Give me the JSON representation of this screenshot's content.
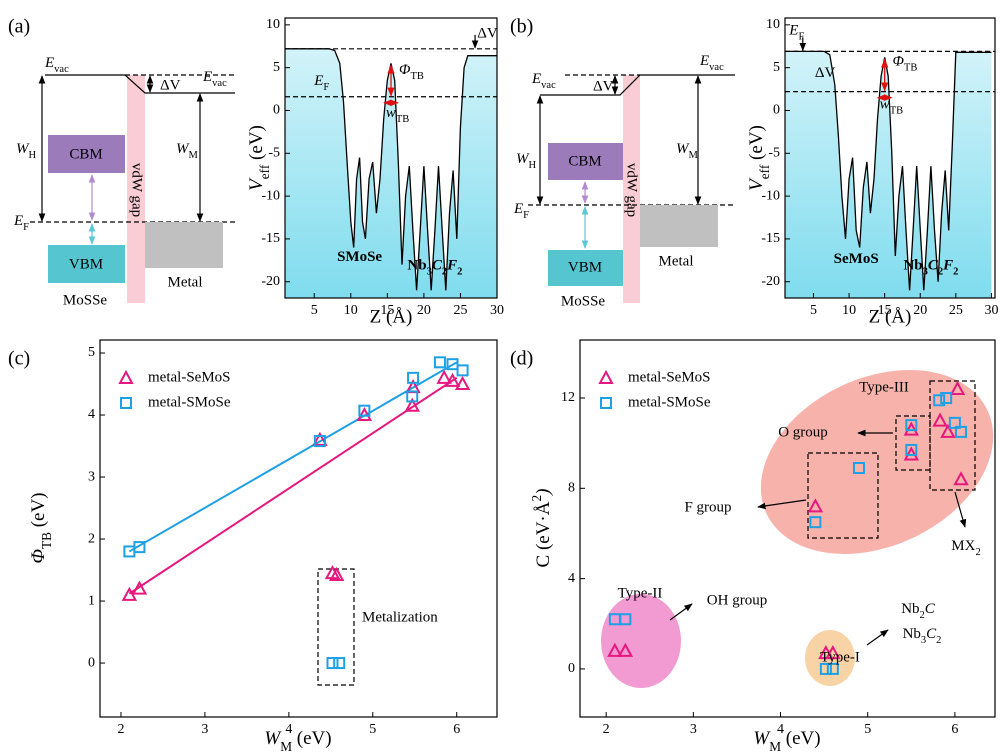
{
  "panel_labels": [
    "(a)",
    "(b)",
    "(c)",
    "(d)"
  ],
  "diagrams": [
    {
      "labels": [
        {
          "parts": [
            "E",
            "vac"
          ]
        },
        {
          "parts": [
            "E",
            "vac"
          ]
        },
        "ΔV",
        {
          "parts": [
            "W",
            "H"
          ]
        },
        {
          "parts": [
            "W",
            "M"
          ]
        },
        "CBM",
        "vdW gap",
        {
          "parts": [
            "E",
            "F"
          ]
        },
        "VBM",
        "Metal",
        "MoSSe"
      ]
    },
    {
      "labels": [
        {
          "parts": [
            "E",
            "vac"
          ]
        },
        {
          "parts": [
            "E",
            "vac"
          ]
        },
        "ΔV",
        {
          "parts": [
            "W",
            "H"
          ]
        },
        {
          "parts": [
            "W",
            "M"
          ]
        },
        "CBM",
        "vdW gap",
        {
          "parts": [
            "E",
            "F"
          ]
        },
        "VBM",
        "Metal",
        "MoSSe"
      ]
    }
  ],
  "chart_data": [
    {
      "type": "area",
      "color": "#000000",
      "fill": "#7fdcee",
      "x": [
        1,
        7,
        7.8,
        8.5,
        9,
        9.5,
        10,
        10.4,
        10.8,
        11.2,
        11.6,
        12,
        12.5,
        13,
        13.5,
        14,
        14.5,
        15,
        15.5,
        16,
        16.5,
        17,
        17.5,
        18,
        18.5,
        19,
        19.5,
        20,
        20.5,
        21,
        21.5,
        22,
        22.5,
        23,
        23.5,
        24,
        24.5,
        25,
        25.5,
        26,
        30
      ],
      "values": [
        7.2,
        7.2,
        7.0,
        5.5,
        1,
        -6,
        -13,
        -16,
        -8,
        -5.5,
        -13,
        -15,
        -8,
        -6,
        -12,
        -8,
        -1,
        3.5,
        5.5,
        3.5,
        -6,
        -18,
        -10,
        -6.5,
        -14,
        -21,
        -14,
        -6.5,
        -14,
        -21,
        -14,
        -6.5,
        -14,
        -21,
        -12,
        -7,
        -15,
        -2,
        5,
        6.4,
        6.4
      ],
      "xlim": [
        1,
        30
      ],
      "ylim": [
        -21.9,
        10.8
      ],
      "xticks": [
        5,
        10,
        15,
        20,
        25,
        30
      ],
      "yticks": [
        -20,
        -15,
        -10,
        -5,
        0,
        5,
        10
      ],
      "xlabel": "Z (Å)",
      "ylabel": {
        "parts": [
          "V",
          "eff",
          " (eV)"
        ]
      },
      "reference_lines": [
        7.2,
        1.6
      ],
      "annotations": [
        {
          "parts": [
            "E",
            "F"
          ]
        },
        "ΔV",
        {
          "parts": [
            "Φ",
            "TB"
          ]
        },
        {
          "parts": [
            "w",
            "TB"
          ]
        },
        "SMoSe",
        {
          "parts": [
            "Nb",
            "3",
            "C",
            "2",
            "F",
            "2"
          ]
        }
      ]
    },
    {
      "type": "area",
      "color": "#000000",
      "fill": "#7fdcee",
      "x": [
        1,
        6.5,
        7.3,
        8,
        8.5,
        9,
        9.5,
        10,
        10.5,
        11,
        11.5,
        12,
        12.5,
        13,
        13.5,
        14,
        14.5,
        15,
        15.5,
        16,
        16.5,
        17,
        17.5,
        18,
        18.5,
        19,
        19.5,
        20,
        20.5,
        21,
        21.5,
        22,
        22.5,
        23,
        23.5,
        24,
        24.5,
        25,
        30
      ],
      "values": [
        6.9,
        6.9,
        6.5,
        3,
        -3,
        -10,
        -15,
        -8,
        -5.5,
        -14,
        -16,
        -9,
        -6,
        -12,
        -8,
        -1,
        4,
        6.2,
        4,
        -5,
        -17,
        -10,
        -6.5,
        -14,
        -21,
        -14,
        -6.5,
        -14,
        -21,
        -14,
        -6.5,
        -14,
        -20,
        -12,
        -7,
        -14,
        -4,
        6.8,
        6.8
      ],
      "xlim": [
        1,
        30.5
      ],
      "ylim": [
        -21.9,
        10.8
      ],
      "xticks": [
        5,
        10,
        15,
        20,
        25,
        30
      ],
      "yticks": [
        -20,
        -15,
        -10,
        -5,
        0,
        5,
        10
      ],
      "xlabel": "Z (Å)",
      "ylabel": {
        "parts": [
          "V",
          "eff",
          " (eV)"
        ]
      },
      "reference_lines": [
        6.9,
        2.2
      ],
      "annotations": [
        {
          "parts": [
            "E",
            "F"
          ]
        },
        "ΔV",
        {
          "parts": [
            "Φ",
            "TB"
          ]
        },
        {
          "parts": [
            "w",
            "TB"
          ]
        },
        "SeMoS",
        {
          "parts": [
            "Nb",
            "3",
            "C",
            "2",
            "F",
            "2"
          ]
        }
      ]
    },
    {
      "type": "scatter",
      "legend": "upper left",
      "xlim": [
        1.75,
        6.48
      ],
      "ylim": [
        -0.87,
        5.21
      ],
      "xticks": [
        2,
        3,
        4,
        5,
        6
      ],
      "yticks": [
        0,
        1,
        2,
        3,
        4,
        5
      ],
      "xlabel": {
        "parts": [
          "W",
          "M",
          " (eV)"
        ]
      },
      "ylabel": {
        "parts": [
          "Φ",
          "TB",
          " (eV)"
        ]
      },
      "series": [
        {
          "name": "metal-SeMoS",
          "color": "#e6177f",
          "marker": "triangle",
          "x": [
            2.1,
            2.22,
            4.37,
            4.9,
            5.47,
            5.48,
            5.85,
            5.95,
            6.07,
            4.52,
            4.57
          ],
          "values": [
            1.1,
            1.2,
            3.6,
            4.0,
            4.15,
            4.45,
            4.6,
            4.55,
            4.5,
            1.45,
            1.42
          ]
        },
        {
          "name": "metal-SMoSe",
          "color": "#1ea0e6",
          "marker": "square",
          "x": [
            2.1,
            2.22,
            4.37,
            4.9,
            5.47,
            5.48,
            5.8,
            5.95,
            6.07,
            4.52,
            4.6
          ],
          "values": [
            1.8,
            1.87,
            3.58,
            4.07,
            4.3,
            4.6,
            4.85,
            4.82,
            4.72,
            0,
            0
          ]
        }
      ],
      "fit_lines": [
        {
          "color": "#e6177f",
          "x": [
            2.1,
            6.0
          ],
          "values": [
            1.12,
            4.6
          ]
        },
        {
          "color": "#1ea0e6",
          "x": [
            2.1,
            6.0
          ],
          "values": [
            1.8,
            4.85
          ]
        }
      ],
      "annotations": [
        "Metalization"
      ]
    },
    {
      "type": "scatter",
      "legend": "upper left",
      "xlim": [
        1.7,
        6.46
      ],
      "ylim": [
        -2.13,
        14.57
      ],
      "xticks": [
        2,
        3,
        4,
        5,
        6
      ],
      "yticks": [
        0,
        4,
        8,
        12
      ],
      "xlabel": {
        "parts": [
          "W",
          "M",
          " (eV)"
        ]
      },
      "ylabel": {
        "parts": [
          "C (eV·Å",
          "2",
          ")"
        ],
        "sup": true
      },
      "series": [
        {
          "name": "metal-SeMoS",
          "color": "#e6177f",
          "marker": "triangle",
          "x": [
            2.1,
            2.22,
            4.52,
            4.6,
            4.4,
            5.5,
            5.5,
            5.83,
            5.92,
            6.03,
            6.07
          ],
          "values": [
            0.8,
            0.8,
            0.7,
            0.7,
            7.2,
            10.6,
            9.5,
            11.0,
            10.5,
            12.4,
            8.4
          ]
        },
        {
          "name": "metal-SMoSe",
          "color": "#1ea0e6",
          "marker": "square",
          "x": [
            2.1,
            2.22,
            4.52,
            4.6,
            4.4,
            4.9,
            5.5,
            5.5,
            5.82,
            5.9,
            6.0,
            6.07
          ],
          "values": [
            2.2,
            2.2,
            0,
            0,
            6.5,
            8.9,
            10.8,
            9.7,
            11.9,
            12.0,
            10.9,
            10.5
          ]
        }
      ],
      "annotations": [
        "Type-III",
        "O group",
        "F group",
        {
          "parts": [
            "MX",
            "2"
          ]
        },
        "Type-II",
        "OH group",
        "Type-I",
        {
          "parts": [
            "Nb",
            "2",
            "C"
          ]
        },
        {
          "parts": [
            "Nb",
            "3",
            "C",
            "2"
          ]
        }
      ]
    }
  ]
}
